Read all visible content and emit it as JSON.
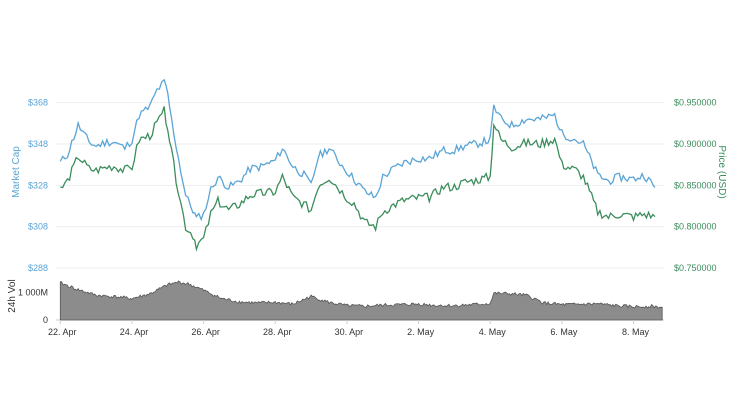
{
  "chart_data": {
    "type": "line",
    "y_left": {
      "label": "Market Cap",
      "ticks": [
        "$288",
        "$308",
        "$328",
        "$348",
        "$368"
      ],
      "tick_values": [
        288,
        308,
        328,
        348,
        368
      ],
      "range": [
        288,
        378
      ],
      "color": "#5aa5d6"
    },
    "y_right": {
      "label": "Price (USD)",
      "ticks": [
        "$0.750000",
        "$0.800000",
        "$0.850000",
        "$0.900000",
        "$0.950000"
      ],
      "tick_values": [
        0.75,
        0.8,
        0.85,
        0.9,
        0.95
      ],
      "range": [
        0.75,
        0.975
      ],
      "color": "#3c8d5c"
    },
    "volume": {
      "label": "24h Vol",
      "ticks": [
        "0",
        "1 000M"
      ],
      "tick_values": [
        0,
        1000
      ],
      "range": [
        0,
        1600
      ],
      "color": "#555555"
    },
    "x_ticks": [
      "22. Apr",
      "24. Apr",
      "26. Apr",
      "28. Apr",
      "30. Apr",
      "2. May",
      "4. May",
      "6. May",
      "8. May"
    ],
    "x_tick_days": [
      0,
      2,
      4,
      6,
      8,
      10,
      12,
      14,
      16
    ],
    "x_range_days": [
      -0.12,
      16.85
    ],
    "series": [
      {
        "name": "Market Cap",
        "axis": "left",
        "color": "#5aa5d6",
        "x": [
          0,
          0.2,
          0.5,
          0.8,
          1.0,
          1.3,
          1.5,
          1.8,
          2.0,
          2.2,
          2.5,
          2.7,
          2.9,
          3.0,
          3.1,
          3.3,
          3.5,
          3.7,
          3.8,
          4.0,
          4.2,
          4.4,
          4.7,
          5.0,
          5.3,
          5.6,
          6.0,
          6.2,
          6.5,
          6.8,
          7.0,
          7.2,
          7.5,
          7.8,
          8.0,
          8.2,
          8.5,
          8.8,
          9.0,
          9.3,
          9.6,
          10.0,
          10.3,
          10.7,
          11.0,
          11.3,
          11.6,
          12.0,
          12.1,
          12.3,
          12.6,
          13.0,
          13.4,
          13.8,
          14.0,
          14.4,
          14.6,
          15.0,
          15.3,
          15.6,
          16.0,
          16.3,
          16.6
        ],
        "values": [
          339,
          343,
          357,
          349,
          347,
          349,
          349,
          346,
          350,
          362,
          366,
          374,
          378,
          372,
          360,
          341,
          323,
          316,
          312,
          314,
          326,
          332,
          327,
          330,
          336,
          337,
          340,
          346,
          337,
          333,
          328,
          342,
          346,
          339,
          335,
          331,
          325,
          322,
          332,
          336,
          339,
          341,
          341,
          345,
          345,
          347,
          348,
          350,
          366,
          360,
          357,
          360,
          360,
          362,
          353,
          350,
          348,
          333,
          330,
          332,
          331,
          333,
          327
        ]
      },
      {
        "name": "Price (USD)",
        "axis": "right",
        "color": "#3c8d5c",
        "x": [
          0,
          0.2,
          0.5,
          0.8,
          1.0,
          1.3,
          1.5,
          1.8,
          2.0,
          2.2,
          2.5,
          2.7,
          2.9,
          3.0,
          3.1,
          3.3,
          3.5,
          3.7,
          3.8,
          4.0,
          4.2,
          4.4,
          4.7,
          5.0,
          5.3,
          5.6,
          6.0,
          6.2,
          6.5,
          6.8,
          7.0,
          7.2,
          7.5,
          7.8,
          8.0,
          8.2,
          8.5,
          8.8,
          9.0,
          9.3,
          9.6,
          10.0,
          10.3,
          10.7,
          11.0,
          11.3,
          11.6,
          12.0,
          12.1,
          12.3,
          12.6,
          13.0,
          13.4,
          13.8,
          14.0,
          14.4,
          14.6,
          15.0,
          15.3,
          15.6,
          16.0,
          16.3,
          16.6
        ],
        "values": [
          0.845,
          0.855,
          0.885,
          0.87,
          0.868,
          0.872,
          0.873,
          0.868,
          0.872,
          0.905,
          0.91,
          0.925,
          0.94,
          0.92,
          0.89,
          0.842,
          0.8,
          0.79,
          0.778,
          0.785,
          0.815,
          0.83,
          0.82,
          0.827,
          0.838,
          0.84,
          0.842,
          0.86,
          0.835,
          0.827,
          0.82,
          0.85,
          0.86,
          0.845,
          0.835,
          0.828,
          0.805,
          0.8,
          0.818,
          0.826,
          0.832,
          0.835,
          0.835,
          0.848,
          0.848,
          0.854,
          0.856,
          0.86,
          0.925,
          0.905,
          0.896,
          0.901,
          0.9,
          0.906,
          0.875,
          0.868,
          0.86,
          0.818,
          0.812,
          0.815,
          0.812,
          0.815,
          0.812
        ]
      }
    ],
    "volume_series": {
      "x": [
        0,
        0.5,
        1.0,
        1.5,
        2.0,
        2.5,
        3.0,
        3.3,
        3.6,
        4.0,
        4.5,
        5.0,
        5.5,
        6.0,
        6.5,
        7.0,
        7.5,
        8.0,
        8.5,
        9.0,
        9.5,
        10.0,
        10.5,
        11.0,
        11.5,
        12.0,
        12.1,
        12.5,
        13.0,
        13.5,
        14.0,
        14.5,
        15.0,
        15.5,
        16.0,
        16.5,
        16.8
      ],
      "values": [
        1350,
        1100,
        900,
        850,
        780,
        950,
        1280,
        1380,
        1300,
        1080,
        780,
        660,
        620,
        640,
        580,
        860,
        640,
        520,
        500,
        540,
        560,
        580,
        530,
        520,
        560,
        600,
        970,
        960,
        900,
        620,
        560,
        570,
        590,
        520,
        480,
        500,
        460
      ]
    }
  }
}
